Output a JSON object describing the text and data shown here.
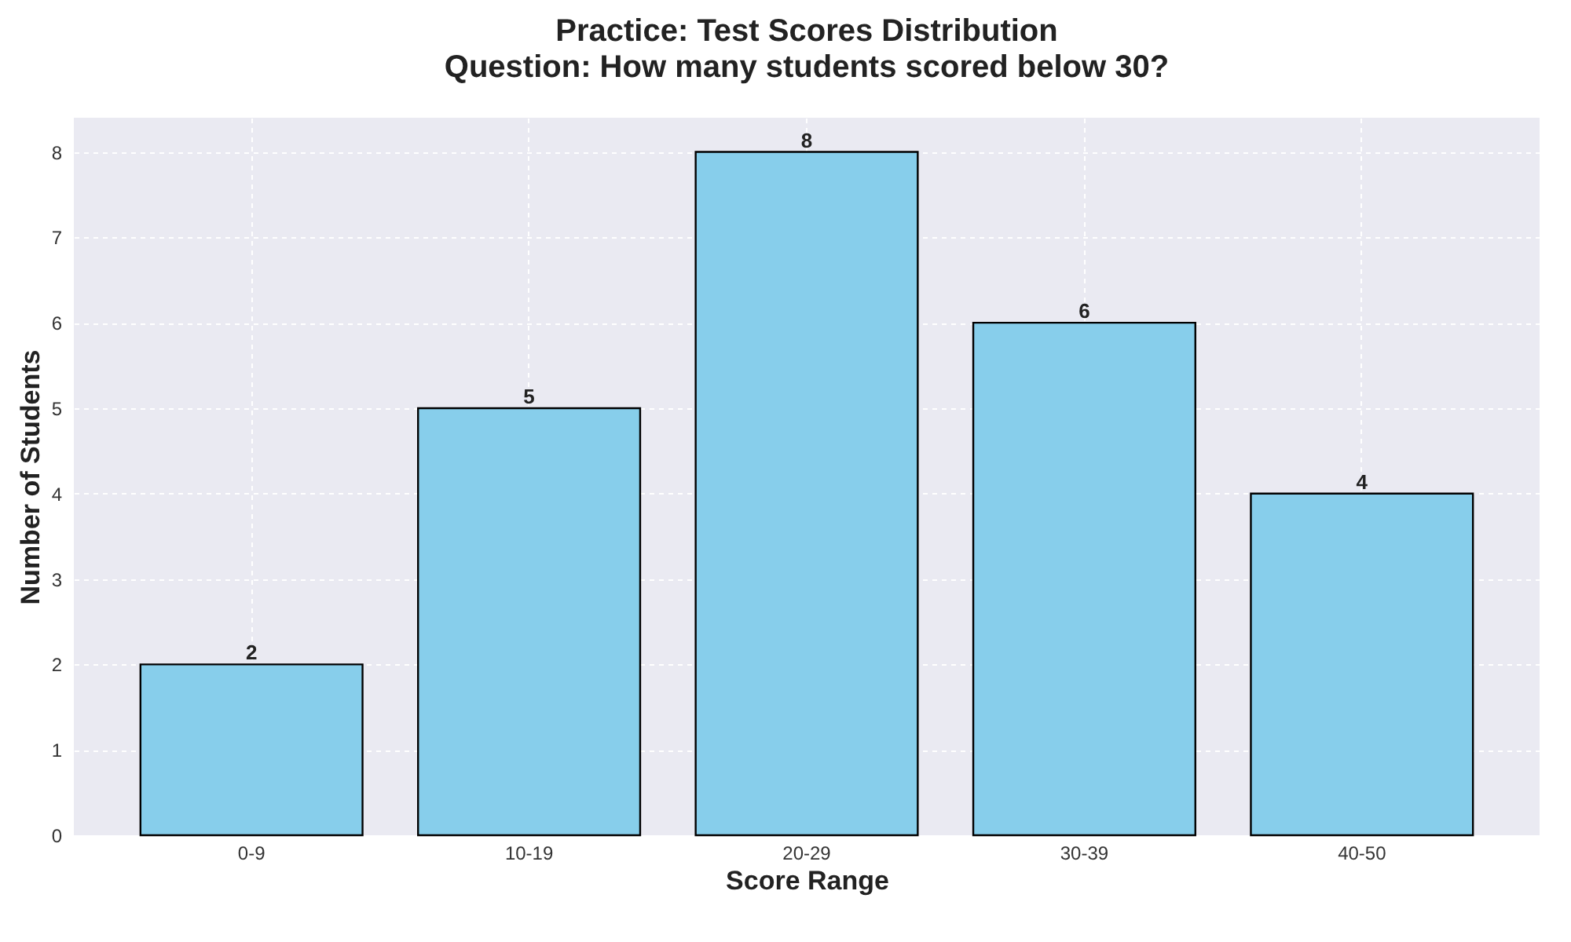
{
  "chart_data": {
    "type": "bar",
    "title": "Practice: Test Scores Distribution",
    "subtitle": "Question: How many students scored below 30?",
    "xlabel": "Score Range",
    "ylabel": "Number of Students",
    "categories": [
      "0-9",
      "10-19",
      "20-29",
      "30-39",
      "40-50"
    ],
    "values": [
      2,
      5,
      8,
      6,
      4
    ],
    "color": "#87ceeb",
    "ylim": [
      0,
      8.4
    ],
    "yticks": [
      0,
      1,
      2,
      3,
      4,
      5,
      6,
      7,
      8
    ],
    "grid": true,
    "data_labels": true
  }
}
